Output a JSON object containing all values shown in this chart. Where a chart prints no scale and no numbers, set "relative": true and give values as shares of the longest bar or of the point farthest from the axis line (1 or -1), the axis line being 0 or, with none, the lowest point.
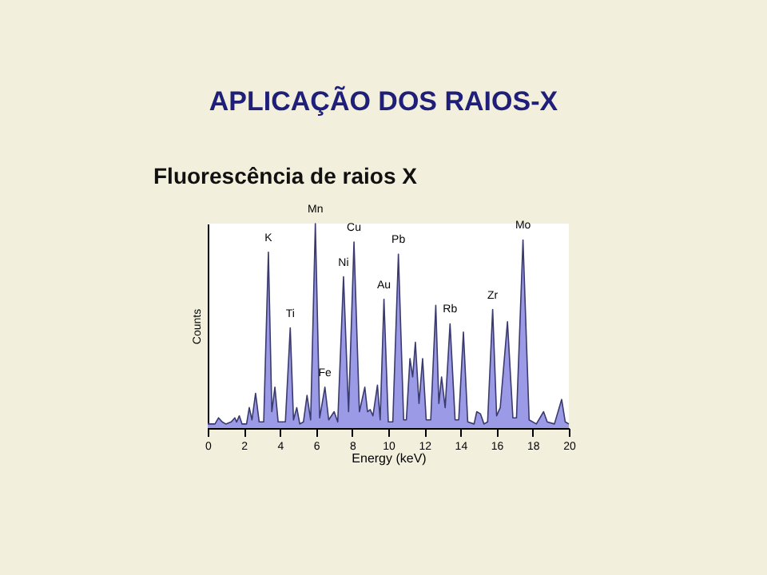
{
  "chart_data": {
    "type": "area",
    "title": "APLICAÇÃO DOS RAIOS-X",
    "subtitle": "Fluorescência de raios X",
    "xlabel": "Energy (keV)",
    "ylabel": "Counts",
    "relative": true,
    "grid": false,
    "xlim": [
      0,
      20
    ],
    "xticks": [
      0,
      2,
      4,
      6,
      8,
      10,
      12,
      14,
      16,
      18,
      20
    ],
    "series": [
      {
        "color": "#9a9ae6",
        "x": [
          0,
          0.4,
          0.6,
          0.8,
          1.0,
          1.3,
          1.5,
          1.6,
          1.75,
          1.9,
          2.15,
          2.3,
          2.45,
          2.65,
          2.85,
          3.1,
          3.36,
          3.55,
          3.72,
          3.9,
          4.3,
          4.57,
          4.75,
          4.93,
          5.1,
          5.3,
          5.5,
          5.7,
          5.96,
          6.2,
          6.49,
          6.7,
          7.0,
          7.2,
          7.52,
          7.8,
          8.1,
          8.4,
          8.7,
          8.85,
          9.0,
          9.15,
          9.4,
          9.55,
          9.76,
          10.0,
          10.25,
          10.56,
          10.85,
          11.0,
          11.2,
          11.35,
          11.5,
          11.7,
          11.9,
          12.1,
          12.35,
          12.63,
          12.8,
          12.95,
          13.15,
          13.42,
          13.7,
          13.9,
          14.16,
          14.4,
          14.75,
          14.9,
          15.1,
          15.3,
          15.5,
          15.78,
          16.0,
          16.2,
          16.6,
          16.9,
          17.1,
          17.46,
          17.8,
          18.2,
          18.6,
          18.8,
          19.2,
          19.6,
          19.8,
          20
        ],
        "values": [
          0.02,
          0.02,
          0.05,
          0.03,
          0.02,
          0.03,
          0.05,
          0.03,
          0.06,
          0.02,
          0.02,
          0.1,
          0.04,
          0.17,
          0.03,
          0.03,
          0.86,
          0.08,
          0.2,
          0.03,
          0.03,
          0.49,
          0.04,
          0.1,
          0.02,
          0.03,
          0.16,
          0.04,
          1.0,
          0.05,
          0.2,
          0.04,
          0.08,
          0.03,
          0.74,
          0.08,
          0.91,
          0.08,
          0.2,
          0.08,
          0.09,
          0.06,
          0.21,
          0.04,
          0.63,
          0.03,
          0.03,
          0.85,
          0.04,
          0.04,
          0.34,
          0.25,
          0.42,
          0.12,
          0.34,
          0.04,
          0.04,
          0.6,
          0.12,
          0.25,
          0.1,
          0.51,
          0.04,
          0.04,
          0.47,
          0.03,
          0.02,
          0.08,
          0.07,
          0.02,
          0.03,
          0.58,
          0.06,
          0.1,
          0.52,
          0.05,
          0.05,
          0.92,
          0.04,
          0.02,
          0.08,
          0.03,
          0.02,
          0.14,
          0.03,
          0.02
        ]
      }
    ],
    "annotations": [
      {
        "text": "K",
        "x": 3.36,
        "y": 0.86
      },
      {
        "text": "Ti",
        "x": 4.57,
        "y": 0.49
      },
      {
        "text": "Mn",
        "x": 5.96,
        "y": 1.0
      },
      {
        "text": "Fe",
        "x": 6.49,
        "y": 0.2
      },
      {
        "text": "Ni",
        "x": 7.52,
        "y": 0.74
      },
      {
        "text": "Cu",
        "x": 8.1,
        "y": 0.91
      },
      {
        "text": "Au",
        "x": 9.76,
        "y": 0.63
      },
      {
        "text": "Pb",
        "x": 10.56,
        "y": 0.85
      },
      {
        "text": "Rb",
        "x": 13.42,
        "y": 0.51
      },
      {
        "text": "Zr",
        "x": 15.78,
        "y": 0.58
      },
      {
        "text": "Mo",
        "x": 17.46,
        "y": 0.92
      }
    ]
  }
}
